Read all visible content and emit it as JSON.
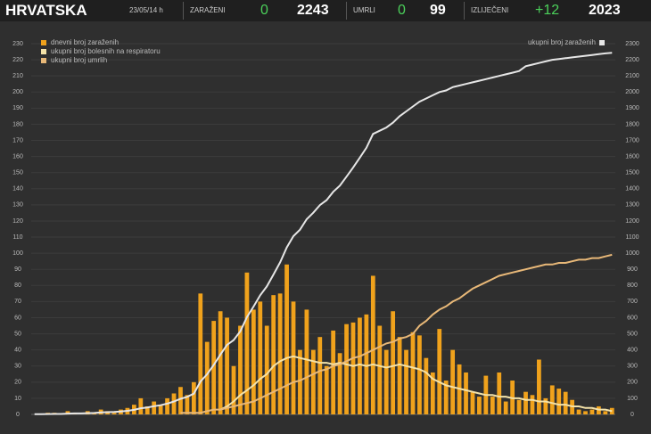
{
  "header": {
    "title": "HRVATSKA",
    "date": "23/05/14 h",
    "stats": [
      {
        "label": "ZARAŽENI",
        "change": "0",
        "total": "2243"
      },
      {
        "label": "UMRLI",
        "change": "0",
        "total": "99"
      },
      {
        "label": "IZLIJEČENI",
        "change": "+12",
        "total": "2023"
      }
    ]
  },
  "chart_data": {
    "type": "bar",
    "categories": [
      null,
      null,
      null,
      null,
      null,
      null,
      null,
      null,
      null,
      null,
      null,
      null,
      null,
      null,
      null,
      null,
      null,
      null,
      null,
      null,
      null,
      null,
      null,
      null,
      null,
      null,
      null,
      null,
      null,
      null,
      null,
      null,
      null,
      null,
      null,
      null,
      null,
      null,
      null,
      null,
      null,
      null,
      null,
      null,
      null,
      null,
      null,
      null,
      null,
      null,
      null,
      null,
      null,
      null,
      null,
      null,
      null,
      null,
      null,
      null,
      null,
      null,
      null,
      null,
      null,
      null,
      null,
      null,
      null,
      null,
      null,
      null,
      null,
      null,
      null,
      null,
      null,
      null,
      null,
      null,
      null,
      null,
      null,
      null,
      null,
      null,
      null,
      null
    ],
    "series": [
      {
        "name": "dnevni broj zaraženih",
        "type": "bar",
        "color": "#f0a21c",
        "values": [
          0,
          0,
          1,
          1,
          0,
          2,
          1,
          0,
          2,
          1,
          3,
          2,
          1,
          3,
          4,
          6,
          10,
          5,
          8,
          6,
          10,
          13,
          17,
          12,
          20,
          75,
          45,
          58,
          64,
          60,
          30,
          55,
          88,
          65,
          70,
          55,
          74,
          75,
          93,
          70,
          40,
          65,
          40,
          48,
          30,
          52,
          38,
          56,
          57,
          60,
          62,
          86,
          55,
          40,
          64,
          48,
          40,
          51,
          49,
          35,
          26,
          53,
          21,
          40,
          31,
          26,
          14,
          11,
          24,
          11,
          26,
          8,
          21,
          9,
          14,
          12,
          34,
          10,
          18,
          16,
          14,
          9,
          3,
          2,
          3,
          5,
          2,
          4
        ]
      },
      {
        "name": "ukupni broj bolesnih na respiratoru",
        "type": "line",
        "color": "#f4e2a8",
        "values": [
          null,
          null,
          null,
          null,
          null,
          null,
          null,
          null,
          null,
          null,
          null,
          null,
          null,
          null,
          null,
          null,
          null,
          null,
          null,
          null,
          null,
          null,
          null,
          null,
          null,
          null,
          null,
          null,
          3,
          5,
          8,
          12,
          15,
          18,
          22,
          25,
          30,
          33,
          35,
          36,
          35,
          34,
          33,
          32,
          32,
          31,
          32,
          31,
          30,
          31,
          30,
          31,
          30,
          29,
          30,
          31,
          30,
          29,
          28,
          26,
          22,
          20,
          18,
          17,
          16,
          15,
          14,
          13,
          12,
          12,
          11,
          11,
          10,
          10,
          9,
          9,
          8,
          8,
          7,
          6,
          6,
          5,
          5,
          4,
          4,
          3,
          3,
          2
        ]
      },
      {
        "name": "ukupni broj umrlih",
        "type": "line",
        "color": "#e8b878",
        "values": [
          null,
          null,
          null,
          null,
          null,
          null,
          null,
          null,
          null,
          null,
          null,
          null,
          null,
          null,
          null,
          null,
          null,
          null,
          null,
          null,
          null,
          null,
          1,
          1,
          1,
          1,
          2,
          3,
          3,
          4,
          5,
          6,
          7,
          8,
          10,
          12,
          14,
          16,
          18,
          20,
          21,
          23,
          25,
          27,
          28,
          30,
          31,
          33,
          35,
          36,
          38,
          40,
          42,
          44,
          45,
          47,
          48,
          50,
          55,
          58,
          62,
          65,
          67,
          70,
          72,
          75,
          78,
          80,
          82,
          84,
          86,
          87,
          88,
          89,
          90,
          91,
          92,
          93,
          93,
          94,
          94,
          95,
          96,
          96,
          97,
          97,
          98,
          99
        ]
      },
      {
        "name": "ukupni broj zaraženih",
        "type": "line",
        "axis": "y2",
        "color": "#e6e6e6",
        "values": [
          1,
          1,
          2,
          3,
          3,
          5,
          6,
          6,
          8,
          9,
          12,
          14,
          15,
          18,
          22,
          28,
          38,
          43,
          51,
          57,
          67,
          80,
          97,
          109,
          129,
          204,
          249,
          307,
          371,
          431,
          461,
          516,
          604,
          669,
          739,
          794,
          868,
          943,
          1036,
          1106,
          1146,
          1211,
          1251,
          1299,
          1329,
          1381,
          1419,
          1475,
          1532,
          1592,
          1654,
          1740,
          1760,
          1780,
          1810,
          1850,
          1880,
          1910,
          1940,
          1960,
          1980,
          2000,
          2010,
          2030,
          2040,
          2050,
          2060,
          2070,
          2080,
          2090,
          2100,
          2110,
          2120,
          2130,
          2160,
          2170,
          2180,
          2190,
          2200,
          2205,
          2210,
          2215,
          2220,
          2225,
          2230,
          2235,
          2240,
          2243
        ]
      }
    ],
    "ylim": [
      0,
      230
    ],
    "yticks": [
      0,
      10,
      20,
      30,
      40,
      50,
      60,
      70,
      80,
      90,
      100,
      110,
      120,
      130,
      140,
      150,
      160,
      170,
      180,
      190,
      200,
      210,
      220,
      230
    ],
    "y2lim": [
      0,
      2300
    ],
    "y2ticks": [
      0,
      100,
      200,
      300,
      400,
      500,
      600,
      700,
      800,
      900,
      1000,
      1100,
      1200,
      1300,
      1400,
      1500,
      1600,
      1700,
      1800,
      1900,
      2000,
      2100,
      2200,
      2300
    ],
    "grid": true,
    "legend": "upper left"
  }
}
